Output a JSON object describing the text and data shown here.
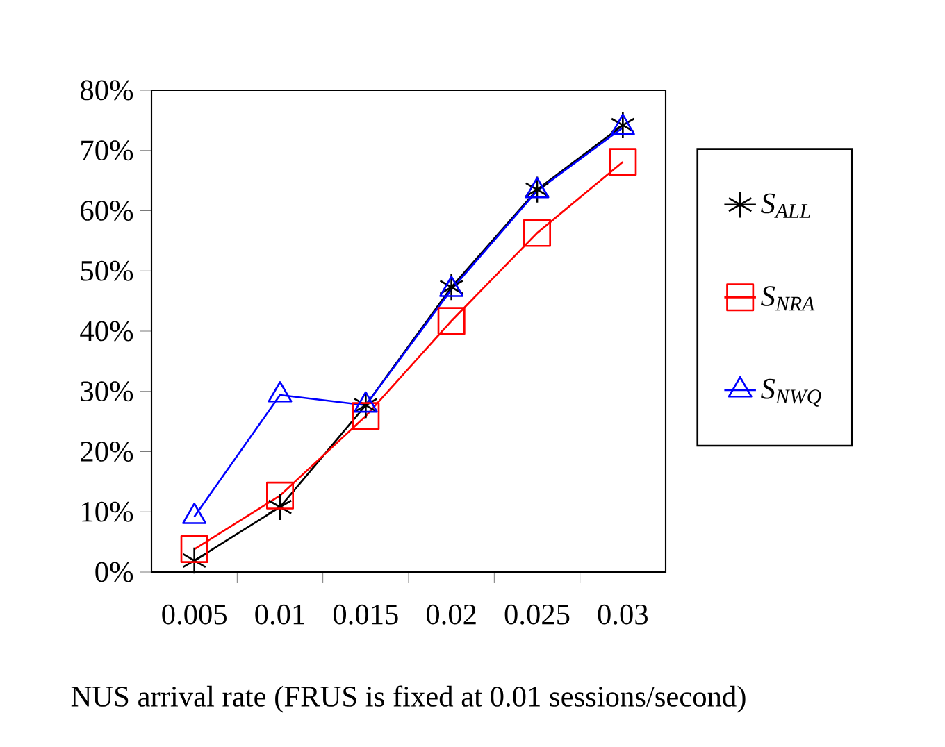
{
  "chart_data": {
    "type": "line",
    "xlabel": "NUS arrival rate (FRUS is fixed at 0.01 sessions/second)",
    "categories": [
      "0.005",
      "0.01",
      "0.015",
      "0.02",
      "0.025",
      "0.03"
    ],
    "series": [
      {
        "name": "S$_{ALL}$",
        "color": "#000000",
        "marker": "cross",
        "values": [
          1.9,
          10.8,
          27.7,
          47.3,
          63.5,
          74.2
        ]
      },
      {
        "name": "S$_{NRA}$",
        "color": "#ff0000",
        "marker": "square",
        "values": [
          3.8,
          12.7,
          25.9,
          41.7,
          56.3,
          68.1
        ]
      },
      {
        "name": "S$_{NWQ}$",
        "color": "#0000ff",
        "marker": "triangle",
        "values": [
          9.2,
          29.4,
          27.7,
          46.9,
          63.3,
          73.8
        ]
      }
    ],
    "ylim": [
      0,
      80
    ],
    "yticks": [
      {
        "value": 0,
        "label": "0%"
      },
      {
        "value": 10,
        "label": "10%"
      },
      {
        "value": 20,
        "label": "20%"
      },
      {
        "value": 30,
        "label": "30%"
      },
      {
        "value": 40,
        "label": "40%"
      },
      {
        "value": 50,
        "label": "50%"
      },
      {
        "value": 60,
        "label": "60%"
      },
      {
        "value": 70,
        "label": "70%"
      },
      {
        "value": 80,
        "label": "80%"
      }
    ],
    "grid": false,
    "legend": "right",
    "line_style": "solid"
  }
}
